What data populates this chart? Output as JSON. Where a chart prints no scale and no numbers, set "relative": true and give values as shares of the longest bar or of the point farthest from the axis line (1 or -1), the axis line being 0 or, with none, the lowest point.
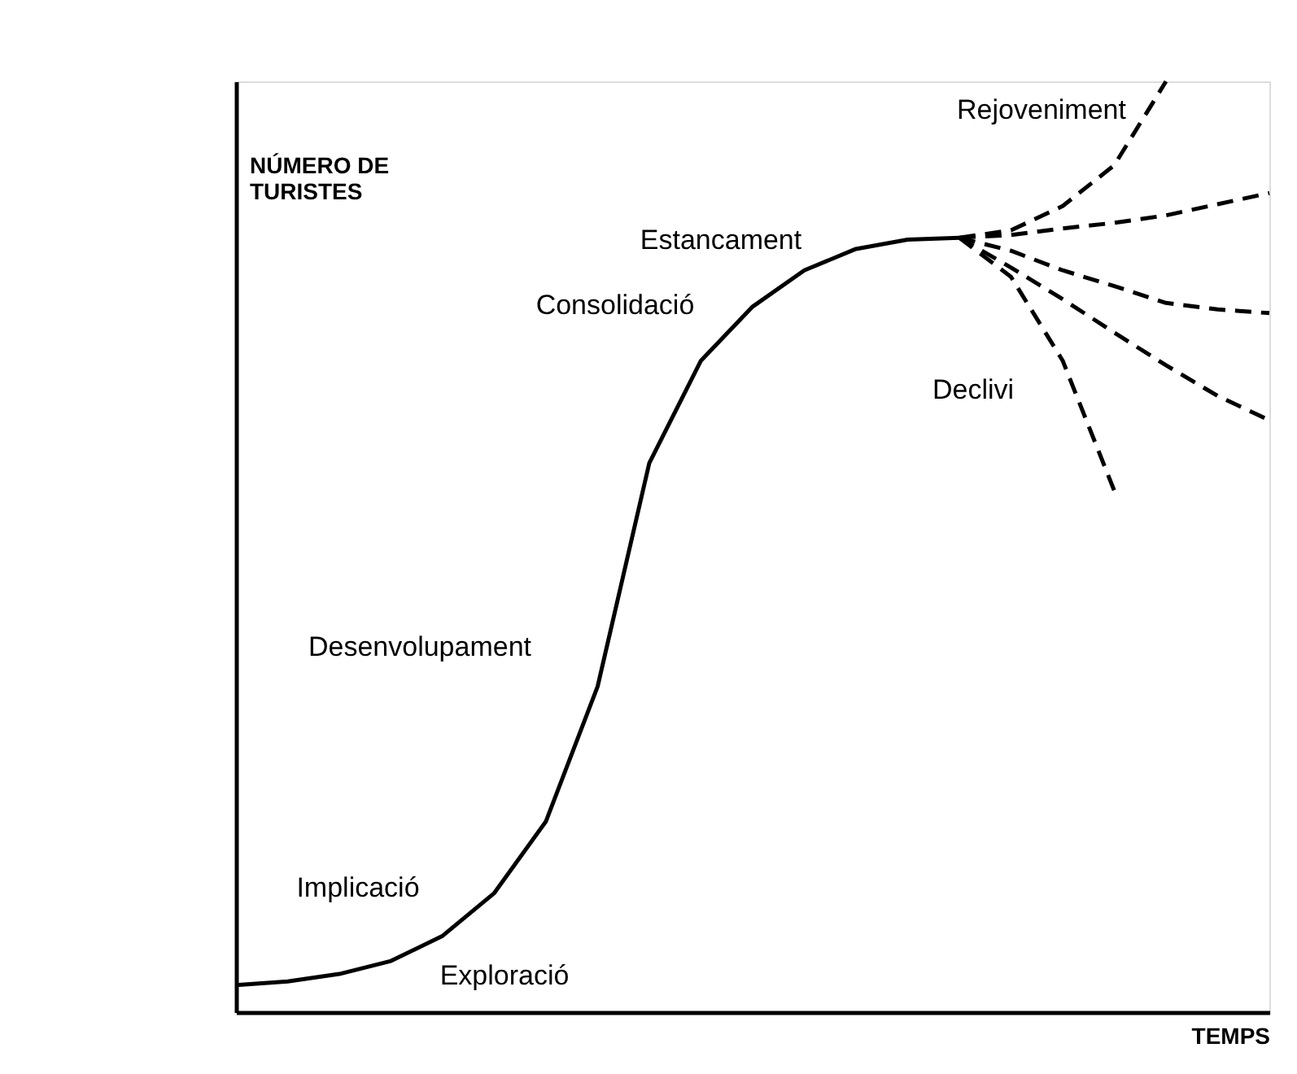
{
  "chart_data": {
    "type": "line",
    "relative": true,
    "xlabel": "TEMPS",
    "ylabel": "NÚMERO DE TURISTES",
    "categories": [
      null,
      null,
      null,
      null,
      null,
      null,
      null,
      null,
      null,
      null,
      null,
      null,
      null,
      null,
      null,
      null,
      null,
      null,
      null,
      null,
      null
    ],
    "series": [
      {
        "color": "#000000",
        "line_style": "solid",
        "values": [
          0.029,
          0.033,
          0.041,
          0.055,
          0.082,
          0.128,
          0.205,
          0.35,
          0.59,
          0.7,
          0.758,
          0.797,
          0.82,
          0.83,
          0.832,
          null,
          null,
          null,
          null,
          null,
          null
        ]
      },
      {
        "color": "#000000",
        "line_style": "dashed",
        "values": [
          null,
          null,
          null,
          null,
          null,
          null,
          null,
          null,
          null,
          null,
          null,
          null,
          null,
          null,
          0.832,
          0.84,
          0.866,
          0.91,
          1.0,
          null,
          null
        ]
      },
      {
        "color": "#000000",
        "line_style": "dashed",
        "values": [
          null,
          null,
          null,
          null,
          null,
          null,
          null,
          null,
          null,
          null,
          null,
          null,
          null,
          null,
          0.832,
          0.835,
          0.842,
          0.848,
          0.856,
          0.868,
          0.88
        ]
      },
      {
        "color": "#000000",
        "line_style": "dashed",
        "values": [
          null,
          null,
          null,
          null,
          null,
          null,
          null,
          null,
          null,
          null,
          null,
          null,
          null,
          null,
          0.832,
          0.818,
          0.797,
          0.78,
          0.762,
          0.755,
          0.751
        ]
      },
      {
        "color": "#000000",
        "line_style": "dashed",
        "values": [
          null,
          null,
          null,
          null,
          null,
          null,
          null,
          null,
          null,
          null,
          null,
          null,
          null,
          null,
          0.832,
          0.8,
          0.766,
          0.73,
          0.695,
          0.662,
          0.636
        ]
      },
      {
        "color": "#000000",
        "line_style": "dashed",
        "values": [
          null,
          null,
          null,
          null,
          null,
          null,
          null,
          null,
          null,
          null,
          null,
          null,
          null,
          null,
          0.832,
          0.79,
          0.7,
          0.56,
          null,
          null,
          null
        ]
      }
    ],
    "annotations": [
      "Exploració",
      "Implicació",
      "Desenvolupament",
      "Consolidació",
      "Estancament",
      "Rejoveniment",
      "Declivi"
    ]
  }
}
